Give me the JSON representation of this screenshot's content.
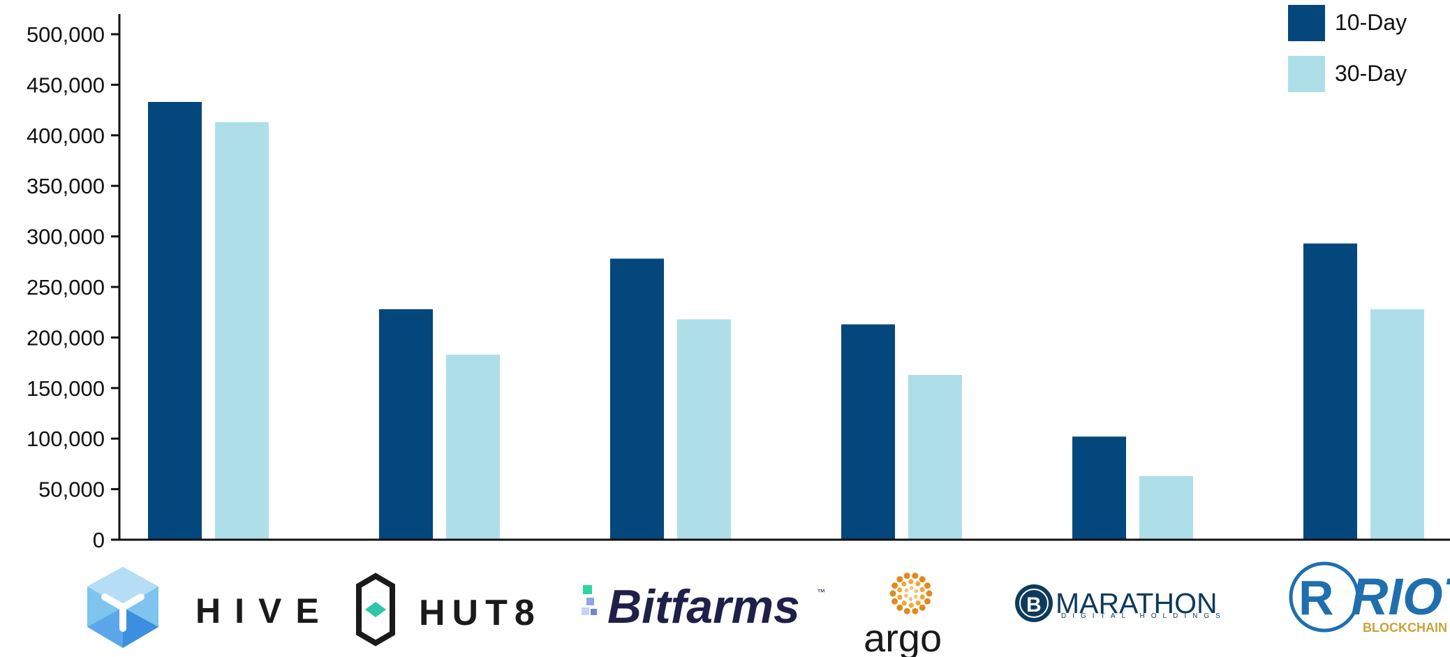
{
  "chart_data": {
    "type": "bar",
    "title": "",
    "xlabel": "",
    "ylabel": "",
    "ylim": [
      0,
      500000
    ],
    "yticks": [
      0,
      50000,
      100000,
      150000,
      200000,
      250000,
      300000,
      350000,
      400000,
      450000,
      500000
    ],
    "ytick_labels": [
      "0",
      "50,000",
      "100,000",
      "150,000",
      "200,000",
      "250,000",
      "300,000",
      "350,000",
      "400,000",
      "450,000",
      "500,000"
    ],
    "categories": [
      "HIVE",
      "HUT 8",
      "Bitfarms",
      "argo",
      "MARATHON",
      "RIOT"
    ],
    "series": [
      {
        "name": "10-Day",
        "color": "#03477C",
        "values": [
          433000,
          228000,
          278000,
          213000,
          102000,
          293000
        ]
      },
      {
        "name": "30-Day",
        "color": "#AEDFE9",
        "values": [
          413000,
          183000,
          218000,
          163000,
          63000,
          228000
        ]
      }
    ],
    "legend_position": "top-right",
    "grid": false
  },
  "logos": {
    "hive": {
      "text": "HIVE",
      "icon": "hive-hexagon-icon"
    },
    "hut8": {
      "text": "HUT8",
      "icon": "hut8-hexagon-icon"
    },
    "bitfarms": {
      "text": "Bitfarms",
      "tm": "™",
      "icon": "bitfarms-pixel-icon"
    },
    "argo": {
      "text": "argo",
      "icon": "argo-sun-icon"
    },
    "marathon": {
      "text": "MARATHON",
      "subtext": "DIGITAL HOLDINGS",
      "icon": "bitcoin-coin-icon"
    },
    "riot": {
      "text": "RIOT",
      "subtext": "BLOCKCHAIN",
      "icon": "riot-circle-icon"
    }
  }
}
